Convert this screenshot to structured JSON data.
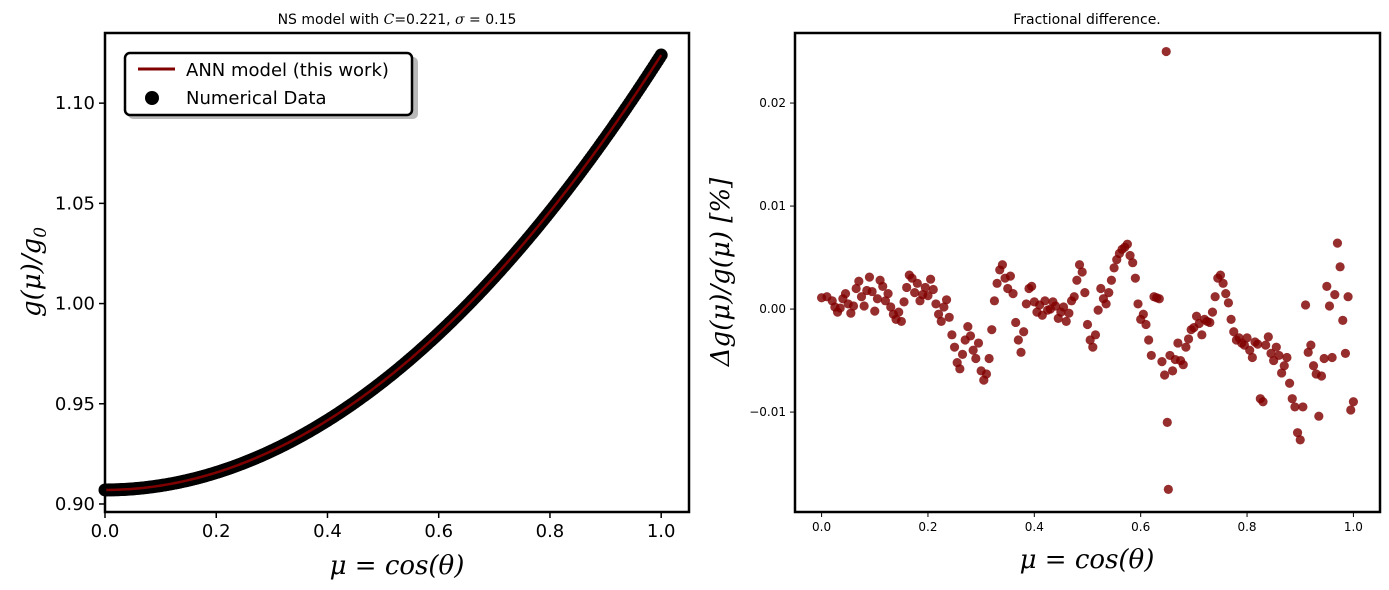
{
  "chart_data": [
    {
      "type": "line",
      "title": "NS model with C=0.221, σ = 0.15",
      "xlabel": "μ = cos(θ)",
      "ylabel": "g(μ)/g₀",
      "xlim": [
        0.0,
        1.05
      ],
      "ylim": [
        0.896,
        1.135
      ],
      "xticks": [
        "0.0",
        "0.2",
        "0.4",
        "0.6",
        "0.8",
        "1.0"
      ],
      "xtick_values": [
        0.0,
        0.2,
        0.4,
        0.6,
        0.8,
        1.0
      ],
      "yticks": [
        "0.90",
        "0.95",
        "1.00",
        "1.05",
        "1.10"
      ],
      "ytick_values": [
        0.9,
        0.95,
        1.0,
        1.05,
        1.1
      ],
      "legend_position": "top-left",
      "grid": false,
      "model": {
        "g0": 0.907,
        "a": 0.217,
        "description": "g(μ)/g0 ≈ 0.907 + 0.217 μ²"
      },
      "series": [
        {
          "name": "ANN model (this work)",
          "kind": "line",
          "color": "#800000"
        },
        {
          "name": "Numerical Data",
          "kind": "scatter",
          "color": "#000000"
        }
      ]
    },
    {
      "type": "scatter",
      "title": "Fractional difference.",
      "xlabel": "μ = cos(θ)",
      "ylabel": "Δg(μ)/g(μ) [%]",
      "xlim": [
        -0.05,
        1.05
      ],
      "ylim": [
        -0.0197,
        0.0268
      ],
      "xticks": [
        "0.0",
        "0.2",
        "0.4",
        "0.6",
        "0.8",
        "1.0"
      ],
      "xtick_values": [
        0.0,
        0.2,
        0.4,
        0.6,
        0.8,
        1.0
      ],
      "yticks": [
        "−0.01",
        "0.00",
        "0.01",
        "0.02"
      ],
      "ytick_values": [
        -0.01,
        0.0,
        0.01,
        0.02
      ],
      "grid": false,
      "color": "#800000",
      "points": [
        [
          0.0,
          0.0011
        ],
        [
          0.01,
          0.0012
        ],
        [
          0.02,
          0.0008
        ],
        [
          0.025,
          0.0002
        ],
        [
          0.03,
          -0.0003
        ],
        [
          0.035,
          0.0001
        ],
        [
          0.04,
          0.001
        ],
        [
          0.045,
          0.0015
        ],
        [
          0.05,
          0.0005
        ],
        [
          0.055,
          -0.0004
        ],
        [
          0.06,
          0.0003
        ],
        [
          0.065,
          0.002
        ],
        [
          0.07,
          0.0027
        ],
        [
          0.075,
          0.0012
        ],
        [
          0.08,
          0.0003
        ],
        [
          0.085,
          0.0018
        ],
        [
          0.09,
          0.0031
        ],
        [
          0.095,
          0.0017
        ],
        [
          0.1,
          -0.0002
        ],
        [
          0.105,
          0.001
        ],
        [
          0.11,
          0.0028
        ],
        [
          0.115,
          0.0022
        ],
        [
          0.12,
          0.0008
        ],
        [
          0.125,
          0.0015
        ],
        [
          0.13,
          0.0002
        ],
        [
          0.135,
          -0.0005
        ],
        [
          0.14,
          -0.001
        ],
        [
          0.145,
          -0.0003
        ],
        [
          0.15,
          -0.0012
        ],
        [
          0.155,
          0.0007
        ],
        [
          0.16,
          0.0021
        ],
        [
          0.165,
          0.0033
        ],
        [
          0.17,
          0.003
        ],
        [
          0.175,
          0.0016
        ],
        [
          0.18,
          0.0025
        ],
        [
          0.185,
          0.0008
        ],
        [
          0.19,
          0.0014
        ],
        [
          0.195,
          0.0021
        ],
        [
          0.2,
          0.0013
        ],
        [
          0.205,
          0.0029
        ],
        [
          0.21,
          0.0019
        ],
        [
          0.215,
          0.0005
        ],
        [
          0.22,
          -0.0005
        ],
        [
          0.225,
          -0.0012
        ],
        [
          0.23,
          0.0002
        ],
        [
          0.235,
          0.0009
        ],
        [
          0.24,
          -0.0008
        ],
        [
          0.245,
          -0.0025
        ],
        [
          0.25,
          -0.0037
        ],
        [
          0.255,
          -0.0052
        ],
        [
          0.26,
          -0.0058
        ],
        [
          0.265,
          -0.0044
        ],
        [
          0.27,
          -0.003
        ],
        [
          0.275,
          -0.0017
        ],
        [
          0.28,
          -0.0026
        ],
        [
          0.285,
          -0.004
        ],
        [
          0.29,
          -0.0048
        ],
        [
          0.295,
          -0.0033
        ],
        [
          0.3,
          -0.006
        ],
        [
          0.305,
          -0.0069
        ],
        [
          0.31,
          -0.0063
        ],
        [
          0.315,
          -0.0048
        ],
        [
          0.32,
          -0.002
        ],
        [
          0.325,
          0.0008
        ],
        [
          0.33,
          0.0025
        ],
        [
          0.335,
          0.0038
        ],
        [
          0.34,
          0.0043
        ],
        [
          0.345,
          0.003
        ],
        [
          0.35,
          0.002
        ],
        [
          0.355,
          0.0032
        ],
        [
          0.36,
          0.0015
        ],
        [
          0.365,
          -0.0013
        ],
        [
          0.37,
          -0.003
        ],
        [
          0.375,
          -0.0042
        ],
        [
          0.38,
          -0.0022
        ],
        [
          0.385,
          0.0005
        ],
        [
          0.39,
          0.002
        ],
        [
          0.395,
          0.0022
        ],
        [
          0.4,
          0.0007
        ],
        [
          0.405,
          -0.0003
        ],
        [
          0.41,
          0.0004
        ],
        [
          0.415,
          -0.0006
        ],
        [
          0.42,
          0.0008
        ],
        [
          0.425,
          -0.0001
        ],
        [
          0.43,
          0.0
        ],
        [
          0.435,
          0.0007
        ],
        [
          0.44,
          0.0003
        ],
        [
          0.445,
          -0.0009
        ],
        [
          0.45,
          -0.0003
        ],
        [
          0.455,
          0.0002
        ],
        [
          0.46,
          -0.0012
        ],
        [
          0.465,
          -0.0004
        ],
        [
          0.47,
          0.0008
        ],
        [
          0.475,
          0.0012
        ],
        [
          0.48,
          0.0028
        ],
        [
          0.485,
          0.0043
        ],
        [
          0.49,
          0.0036
        ],
        [
          0.495,
          0.0016
        ],
        [
          0.5,
          -0.0015
        ],
        [
          0.505,
          -0.003
        ],
        [
          0.51,
          -0.0037
        ],
        [
          0.515,
          -0.0025
        ],
        [
          0.52,
          -0.0001
        ],
        [
          0.525,
          0.002
        ],
        [
          0.53,
          0.001
        ],
        [
          0.535,
          0.0005
        ],
        [
          0.54,
          0.0016
        ],
        [
          0.545,
          0.0028
        ],
        [
          0.55,
          0.004
        ],
        [
          0.555,
          0.0048
        ],
        [
          0.56,
          0.0054
        ],
        [
          0.565,
          0.0058
        ],
        [
          0.57,
          0.006
        ],
        [
          0.575,
          0.0063
        ],
        [
          0.58,
          0.0052
        ],
        [
          0.585,
          0.0045
        ],
        [
          0.59,
          0.003
        ],
        [
          0.595,
          0.0005
        ],
        [
          0.6,
          -0.001
        ],
        [
          0.605,
          -0.0005
        ],
        [
          0.61,
          -0.0015
        ],
        [
          0.615,
          -0.003
        ],
        [
          0.62,
          -0.0045
        ],
        [
          0.625,
          0.0012
        ],
        [
          0.63,
          0.0011
        ],
        [
          0.635,
          0.001
        ],
        [
          0.64,
          -0.0051
        ],
        [
          0.645,
          -0.0064
        ],
        [
          0.648,
          0.025
        ],
        [
          0.65,
          -0.011
        ],
        [
          0.652,
          -0.0175
        ],
        [
          0.655,
          -0.0045
        ],
        [
          0.66,
          -0.006
        ],
        [
          0.665,
          -0.0049
        ],
        [
          0.67,
          -0.0033
        ],
        [
          0.675,
          -0.005
        ],
        [
          0.68,
          -0.0054
        ],
        [
          0.685,
          -0.0037
        ],
        [
          0.69,
          -0.0029
        ],
        [
          0.695,
          -0.002
        ],
        [
          0.7,
          -0.0018
        ],
        [
          0.705,
          -0.0007
        ],
        [
          0.71,
          -0.0014
        ],
        [
          0.715,
          -0.0025
        ],
        [
          0.72,
          -0.001
        ],
        [
          0.725,
          -0.0012
        ],
        [
          0.73,
          -0.0013
        ],
        [
          0.735,
          -0.0003
        ],
        [
          0.74,
          0.0012
        ],
        [
          0.745,
          0.003
        ],
        [
          0.75,
          0.0033
        ],
        [
          0.755,
          0.0025
        ],
        [
          0.76,
          0.0015
        ],
        [
          0.765,
          0.0006
        ],
        [
          0.77,
          -0.001
        ],
        [
          0.775,
          -0.0022
        ],
        [
          0.78,
          -0.003
        ],
        [
          0.785,
          -0.0028
        ],
        [
          0.79,
          -0.0033
        ],
        [
          0.795,
          -0.0035
        ],
        [
          0.8,
          -0.0028
        ],
        [
          0.805,
          -0.004
        ],
        [
          0.81,
          -0.0047
        ],
        [
          0.815,
          -0.0032
        ],
        [
          0.82,
          -0.0034
        ],
        [
          0.825,
          -0.0087
        ],
        [
          0.83,
          -0.009
        ],
        [
          0.835,
          -0.0035
        ],
        [
          0.84,
          -0.0027
        ],
        [
          0.845,
          -0.0043
        ],
        [
          0.85,
          -0.005
        ],
        [
          0.855,
          -0.0037
        ],
        [
          0.86,
          -0.0045
        ],
        [
          0.865,
          -0.0062
        ],
        [
          0.87,
          -0.0055
        ],
        [
          0.875,
          -0.0047
        ],
        [
          0.88,
          -0.0072
        ],
        [
          0.885,
          -0.0087
        ],
        [
          0.89,
          -0.0095
        ],
        [
          0.895,
          -0.012
        ],
        [
          0.9,
          -0.0127
        ],
        [
          0.905,
          -0.0095
        ],
        [
          0.91,
          0.0004
        ],
        [
          0.915,
          -0.0042
        ],
        [
          0.92,
          -0.0035
        ],
        [
          0.925,
          -0.0055
        ],
        [
          0.93,
          -0.0063
        ],
        [
          0.935,
          -0.0104
        ],
        [
          0.94,
          -0.0065
        ],
        [
          0.945,
          -0.0048
        ],
        [
          0.95,
          0.0022
        ],
        [
          0.955,
          0.0003
        ],
        [
          0.96,
          -0.0047
        ],
        [
          0.965,
          0.0014
        ],
        [
          0.97,
          0.0064
        ],
        [
          0.975,
          0.0041
        ],
        [
          0.98,
          -0.0011
        ],
        [
          0.985,
          -0.0043
        ],
        [
          0.99,
          0.0012
        ],
        [
          0.995,
          -0.0098
        ],
        [
          1.0,
          -0.009
        ]
      ]
    }
  ]
}
